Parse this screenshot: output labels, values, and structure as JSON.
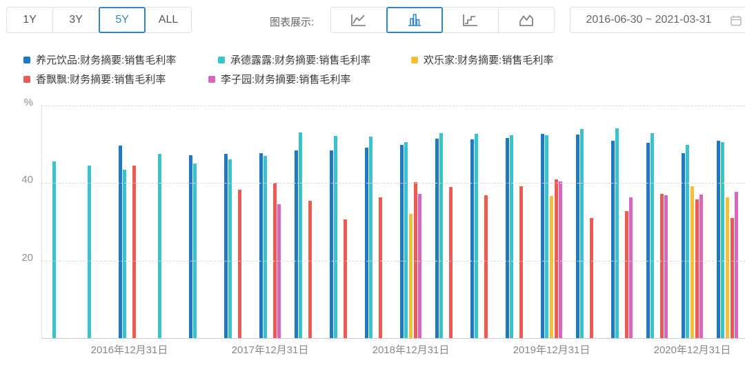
{
  "toolbar": {
    "range_buttons": [
      {
        "label": "1Y",
        "selected": false
      },
      {
        "label": "3Y",
        "selected": false
      },
      {
        "label": "5Y",
        "selected": true
      },
      {
        "label": "ALL",
        "selected": false
      }
    ],
    "chart_display_label": "图表展示:",
    "chart_type_buttons": [
      {
        "name": "line-chart",
        "selected": false
      },
      {
        "name": "bar-chart",
        "selected": true
      },
      {
        "name": "step-chart",
        "selected": false
      },
      {
        "name": "area-chart",
        "selected": false
      }
    ],
    "date_range": "2016-06-30 ~ 2021-03-31",
    "accent_color": "#2f86c5"
  },
  "legend": {
    "rows": [
      {
        "items": [
          {
            "label": "养元饮品:财务摘要:销售毛利率",
            "color": "#1f78c2"
          },
          {
            "label": "承德露露:财务摘要:销售毛利率",
            "color": "#38c3cf"
          },
          {
            "label": "欢乐家:财务摘要:销售毛利率",
            "color": "#f0c139"
          }
        ]
      },
      {
        "items": [
          {
            "label": "香飘飘:财务摘要:销售毛利率",
            "color": "#ee5a52"
          },
          {
            "label": "李子园:财务摘要:销售毛利率",
            "color": "#d966bd"
          }
        ]
      }
    ]
  },
  "chart_data": {
    "type": "bar",
    "title": "",
    "y_unit": "%",
    "ylim": [
      0,
      60
    ],
    "yticks": [
      20,
      40
    ],
    "grid_values": [
      20,
      40,
      60
    ],
    "grid_style": "dashed",
    "legend_position": "top-left",
    "categories": [
      "2016-06-30",
      "2016-09-30",
      "2016-12-31",
      "2017-03-31",
      "2017-06-30",
      "2017-09-30",
      "2017-12-31",
      "2018-03-31",
      "2018-06-30",
      "2018-09-30",
      "2018-12-31",
      "2019-03-31",
      "2019-06-30",
      "2019-09-30",
      "2019-12-31",
      "2020-03-31",
      "2020-06-30",
      "2020-09-30",
      "2020-12-31",
      "2021-03-31"
    ],
    "x_tick_labels": [
      {
        "index": 2,
        "label": "2016年12月31日"
      },
      {
        "index": 6,
        "label": "2017年12月31日"
      },
      {
        "index": 10,
        "label": "2018年12月31日"
      },
      {
        "index": 14,
        "label": "2019年12月31日"
      },
      {
        "index": 18,
        "label": "2020年12月31日"
      }
    ],
    "series": [
      {
        "name": "养元饮品:财务摘要:销售毛利率",
        "color": "#1f78c2",
        "values": [
          null,
          null,
          49.7,
          null,
          47.1,
          47.5,
          47.7,
          48.5,
          48.5,
          49.1,
          49.8,
          51.5,
          51.3,
          51.7,
          52.7,
          52.5,
          51.0,
          50.3,
          47.7,
          50.9
        ]
      },
      {
        "name": "承德露露:财务摘要:销售毛利率",
        "color": "#38c3cf",
        "values": [
          45.5,
          44.5,
          43.5,
          47.5,
          45.1,
          46.1,
          47.0,
          53.0,
          52.1,
          51.9,
          50.6,
          52.9,
          52.7,
          52.4,
          52.4,
          54.0,
          54.2,
          52.8,
          49.9,
          50.6
        ]
      },
      {
        "name": "欢乐家:财务摘要:销售毛利率",
        "color": "#f0c139",
        "values": [
          null,
          null,
          null,
          null,
          null,
          null,
          null,
          null,
          null,
          null,
          32.0,
          null,
          null,
          null,
          36.7,
          null,
          null,
          null,
          39.2,
          36.3
        ]
      },
      {
        "name": "香飘飘:财务摘要:销售毛利率",
        "color": "#ee5a52",
        "values": [
          null,
          null,
          44.5,
          null,
          null,
          38.2,
          40.0,
          35.4,
          30.7,
          36.4,
          40.2,
          39.0,
          36.8,
          39.2,
          40.9,
          30.9,
          32.7,
          37.2,
          35.8,
          30.9
        ]
      },
      {
        "name": "李子园:财务摘要:销售毛利率",
        "color": "#d966bd",
        "values": [
          null,
          null,
          null,
          null,
          null,
          null,
          34.6,
          null,
          null,
          null,
          37.2,
          null,
          null,
          null,
          40.5,
          null,
          36.4,
          36.9,
          37.0,
          37.8
        ]
      }
    ]
  }
}
